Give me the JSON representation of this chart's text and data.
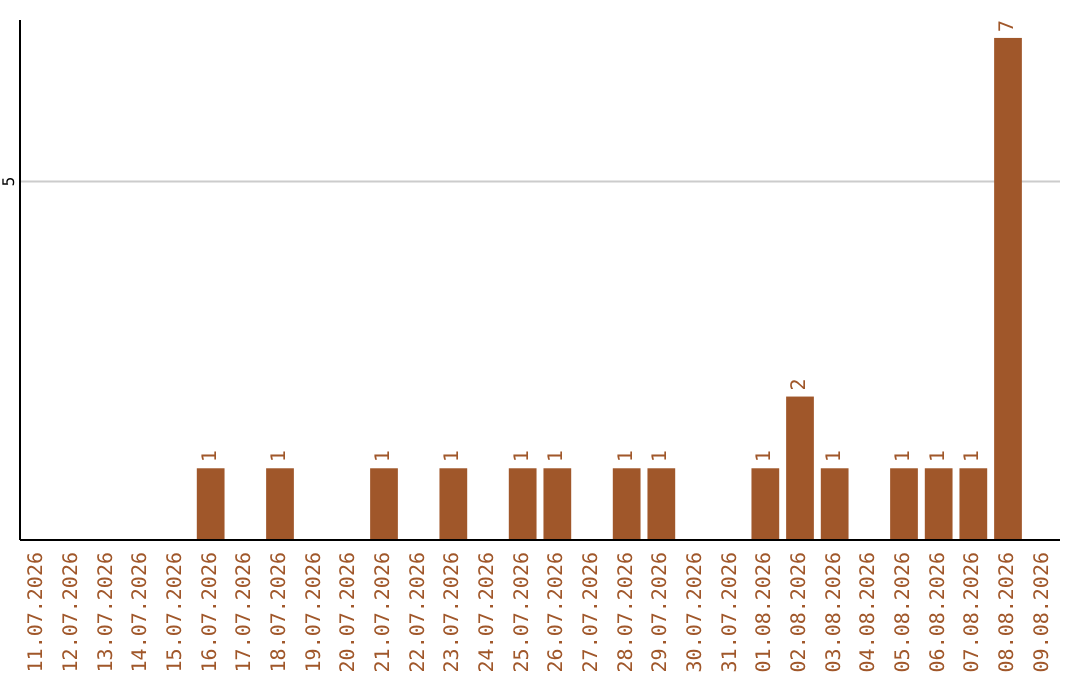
{
  "chart_data": {
    "type": "bar",
    "categories": [
      "11.07.2026",
      "12.07.2026",
      "13.07.2026",
      "14.07.2026",
      "15.07.2026",
      "16.07.2026",
      "17.07.2026",
      "18.07.2026",
      "19.07.2026",
      "20.07.2026",
      "21.07.2026",
      "22.07.2026",
      "23.07.2026",
      "24.07.2026",
      "25.07.2026",
      "26.07.2026",
      "27.07.2026",
      "28.07.2026",
      "29.07.2026",
      "30.07.2026",
      "31.07.2026",
      "01.08.2026",
      "02.08.2026",
      "03.08.2026",
      "04.08.2026",
      "05.08.2026",
      "06.08.2026",
      "07.08.2026",
      "08.08.2026",
      "09.08.2026"
    ],
    "values": [
      0,
      0,
      0,
      0,
      0,
      1,
      0,
      1,
      0,
      0,
      1,
      0,
      1,
      0,
      1,
      1,
      0,
      1,
      1,
      0,
      0,
      1,
      2,
      1,
      0,
      1,
      1,
      1,
      7,
      0
    ],
    "value_labels": [
      null,
      null,
      null,
      null,
      null,
      "1",
      null,
      "1",
      null,
      null,
      "1",
      null,
      "1",
      null,
      "1",
      "1",
      null,
      "1",
      "1",
      null,
      null,
      "1",
      "2",
      "1",
      null,
      "1",
      "1",
      "1",
      "7",
      null
    ],
    "color": "#a0572a",
    "ylim": [
      0,
      7.25
    ],
    "yticks": [
      5
    ],
    "grid": "y"
  }
}
